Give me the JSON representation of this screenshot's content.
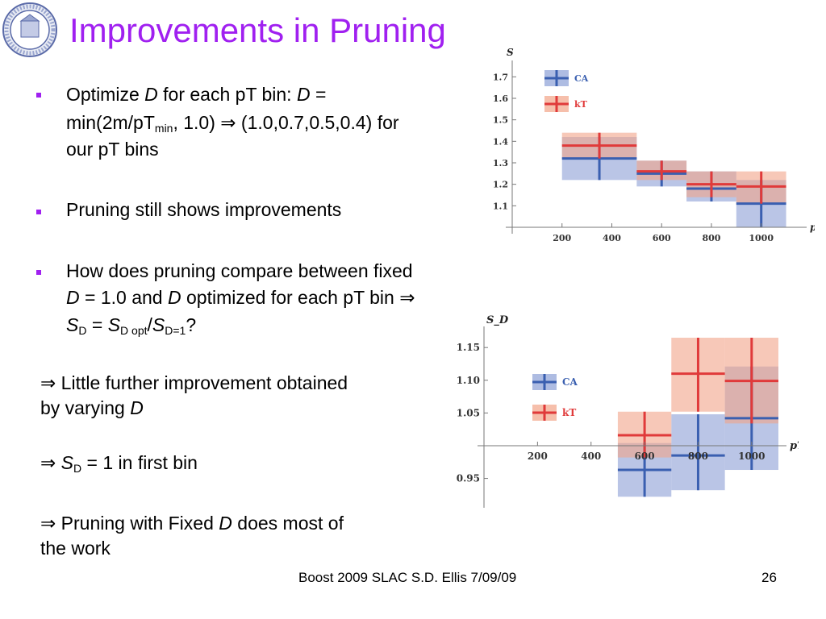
{
  "slide": {
    "title": "Improvements in Pruning",
    "bullets": [
      {
        "line1": {
          "pre": "Optimize ",
          "d1": "D",
          "mid": " for each pT bin: ",
          "d2": "D",
          "post": " ="
        },
        "line2": {
          "pre": "min(2m/pT",
          "sub": "min",
          "post": ", 1.0) ⇒ (1.0,0.7,0.5,0.4) for"
        },
        "line3": "our pT bins"
      },
      {
        "text": "Pruning still shows improvements"
      },
      {
        "line1": "How does pruning compare between fixed",
        "line2": {
          "d1": "D",
          "mid": " = 1.0 and ",
          "d2": "D",
          "post": " optimized for each pT bin ⇒"
        },
        "line3": {
          "s1": "S",
          "sub1": "D",
          "eq": " = ",
          "s2": "S",
          "sub2": "D opt",
          "slash": "/",
          "s3": "S",
          "sub3": "D=1",
          "q": "?"
        }
      }
    ],
    "conclusions": [
      {
        "line1": "⇒ Little further improvement obtained",
        "line2_pre": "by varying ",
        "line2_d": "D"
      },
      {
        "arrow": "⇒ ",
        "s": "S",
        "sub": "D",
        "post": " = 1 in first bin"
      },
      {
        "line1_pre": "⇒ Pruning with Fixed ",
        "line1_d": "D",
        "line1_post": " does most of",
        "line2": "the work"
      }
    ],
    "footer": {
      "left": "Boost 2009  SLAC     S.D. Ellis    7/09/09",
      "page": "26"
    }
  },
  "chart_data": [
    {
      "type": "scatter",
      "ylabel": "S",
      "xlabel": "pT",
      "x_ticks": [
        200,
        400,
        600,
        800,
        1000
      ],
      "y_ticks": [
        "1.1",
        "1.2",
        "1.3",
        "1.4",
        "1.5",
        "1.6",
        "1.7"
      ],
      "ylim": [
        1.0,
        1.75
      ],
      "xlim": [
        0,
        1150
      ],
      "series": [
        {
          "name": "CA",
          "color": "#3a5fb0",
          "band": "#8c9fd6",
          "points": [
            {
              "x": [
                200,
                500
              ],
              "y": 1.32,
              "lo": 1.22,
              "hi": 1.42
            },
            {
              "x": [
                500,
                700
              ],
              "y": 1.25,
              "lo": 1.19,
              "hi": 1.31
            },
            {
              "x": [
                700,
                900
              ],
              "y": 1.18,
              "lo": 1.12,
              "hi": 1.26
            },
            {
              "x": [
                900,
                1100
              ],
              "y": 1.11,
              "lo": 1.0,
              "hi": 1.22
            }
          ]
        },
        {
          "name": "kT",
          "color": "#e03a3a",
          "band": "#f2a488",
          "points": [
            {
              "x": [
                200,
                500
              ],
              "y": 1.38,
              "lo": 1.32,
              "hi": 1.44
            },
            {
              "x": [
                500,
                700
              ],
              "y": 1.26,
              "lo": 1.22,
              "hi": 1.31
            },
            {
              "x": [
                700,
                900
              ],
              "y": 1.2,
              "lo": 1.14,
              "hi": 1.26
            },
            {
              "x": [
                900,
                1100
              ],
              "y": 1.19,
              "lo": 1.11,
              "hi": 1.26
            }
          ]
        }
      ]
    },
    {
      "type": "scatter",
      "ylabel": "S_D",
      "xlabel": "pT",
      "x_ticks": [
        200,
        400,
        600,
        800,
        1000
      ],
      "y_ticks": [
        "0.95",
        "1.05",
        "1.10",
        "1.15"
      ],
      "ylim": [
        0.915,
        1.165
      ],
      "xlim": [
        0,
        1100
      ],
      "series": [
        {
          "name": "CA",
          "color": "#3a5fb0",
          "band": "#8c9fd6",
          "points": [
            {
              "x": [
                500,
                700
              ],
              "y": 0.963,
              "lo": 0.922,
              "hi": 1.004
            },
            {
              "x": [
                700,
                900
              ],
              "y": 0.985,
              "lo": 0.932,
              "hi": 1.048
            },
            {
              "x": [
                900,
                1100
              ],
              "y": 1.042,
              "lo": 0.963,
              "hi": 1.121
            }
          ]
        },
        {
          "name": "kT",
          "color": "#e03a3a",
          "band": "#f2a488",
          "points": [
            {
              "x": [
                500,
                700
              ],
              "y": 1.016,
              "lo": 0.982,
              "hi": 1.052
            },
            {
              "x": [
                700,
                900
              ],
              "y": 1.11,
              "lo": 1.052,
              "hi": 1.165
            },
            {
              "x": [
                900,
                1100
              ],
              "y": 1.099,
              "lo": 1.034,
              "hi": 1.165
            }
          ]
        }
      ]
    }
  ]
}
